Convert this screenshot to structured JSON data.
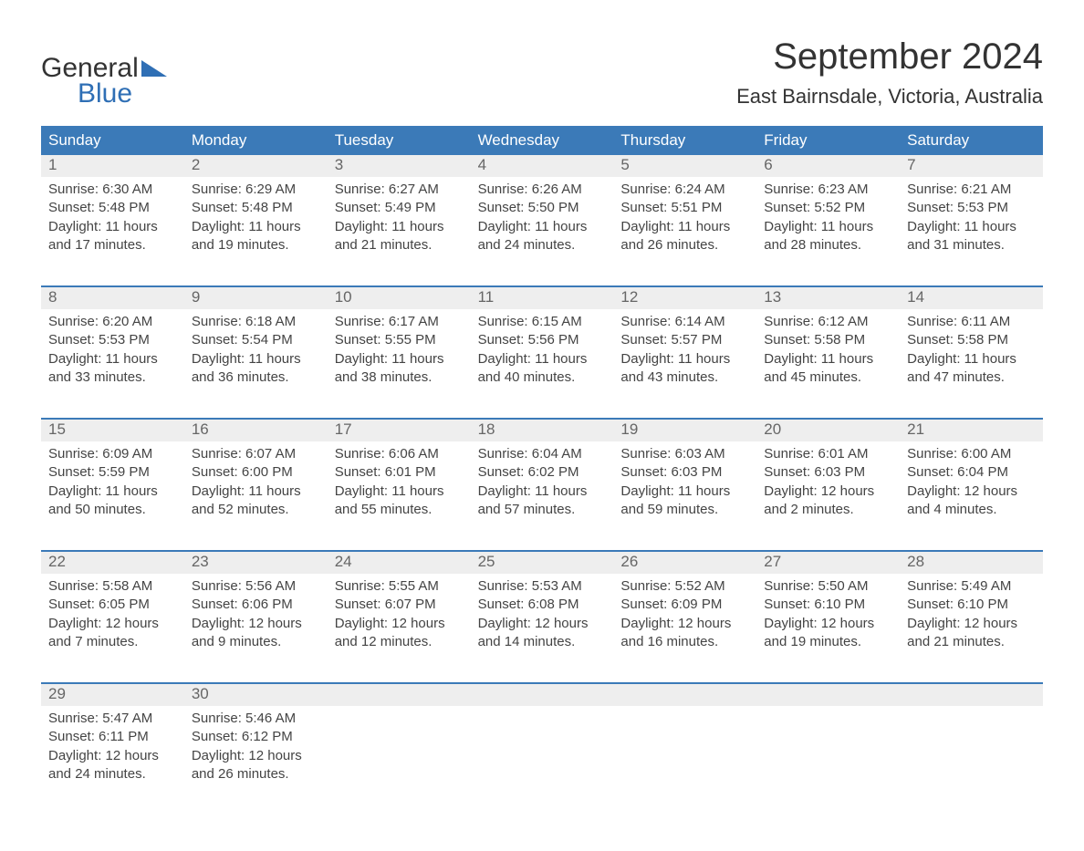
{
  "brand": {
    "text_general": "General",
    "text_blue": "Blue",
    "triangle_color": "#2f6fb5"
  },
  "title": "September 2024",
  "location": "East Bairnsdale, Victoria, Australia",
  "colors": {
    "header_bg": "#3b7ab8",
    "header_text": "#ffffff",
    "date_row_bg": "#eeeeee",
    "date_text": "#666666",
    "body_text": "#444444",
    "rule": "#3b7ab8"
  },
  "fonts": {
    "month_title_size": 40,
    "location_size": 22,
    "header_size": 17,
    "date_size": 17,
    "body_size": 15
  },
  "day_names": [
    "Sunday",
    "Monday",
    "Tuesday",
    "Wednesday",
    "Thursday",
    "Friday",
    "Saturday"
  ],
  "weeks": [
    {
      "dates": [
        "1",
        "2",
        "3",
        "4",
        "5",
        "6",
        "7"
      ],
      "cells": [
        {
          "sunrise": "Sunrise: 6:30 AM",
          "sunset": "Sunset: 5:48 PM",
          "daylight": "Daylight: 11 hours and 17 minutes."
        },
        {
          "sunrise": "Sunrise: 6:29 AM",
          "sunset": "Sunset: 5:48 PM",
          "daylight": "Daylight: 11 hours and 19 minutes."
        },
        {
          "sunrise": "Sunrise: 6:27 AM",
          "sunset": "Sunset: 5:49 PM",
          "daylight": "Daylight: 11 hours and 21 minutes."
        },
        {
          "sunrise": "Sunrise: 6:26 AM",
          "sunset": "Sunset: 5:50 PM",
          "daylight": "Daylight: 11 hours and 24 minutes."
        },
        {
          "sunrise": "Sunrise: 6:24 AM",
          "sunset": "Sunset: 5:51 PM",
          "daylight": "Daylight: 11 hours and 26 minutes."
        },
        {
          "sunrise": "Sunrise: 6:23 AM",
          "sunset": "Sunset: 5:52 PM",
          "daylight": "Daylight: 11 hours and 28 minutes."
        },
        {
          "sunrise": "Sunrise: 6:21 AM",
          "sunset": "Sunset: 5:53 PM",
          "daylight": "Daylight: 11 hours and 31 minutes."
        }
      ]
    },
    {
      "dates": [
        "8",
        "9",
        "10",
        "11",
        "12",
        "13",
        "14"
      ],
      "cells": [
        {
          "sunrise": "Sunrise: 6:20 AM",
          "sunset": "Sunset: 5:53 PM",
          "daylight": "Daylight: 11 hours and 33 minutes."
        },
        {
          "sunrise": "Sunrise: 6:18 AM",
          "sunset": "Sunset: 5:54 PM",
          "daylight": "Daylight: 11 hours and 36 minutes."
        },
        {
          "sunrise": "Sunrise: 6:17 AM",
          "sunset": "Sunset: 5:55 PM",
          "daylight": "Daylight: 11 hours and 38 minutes."
        },
        {
          "sunrise": "Sunrise: 6:15 AM",
          "sunset": "Sunset: 5:56 PM",
          "daylight": "Daylight: 11 hours and 40 minutes."
        },
        {
          "sunrise": "Sunrise: 6:14 AM",
          "sunset": "Sunset: 5:57 PM",
          "daylight": "Daylight: 11 hours and 43 minutes."
        },
        {
          "sunrise": "Sunrise: 6:12 AM",
          "sunset": "Sunset: 5:58 PM",
          "daylight": "Daylight: 11 hours and 45 minutes."
        },
        {
          "sunrise": "Sunrise: 6:11 AM",
          "sunset": "Sunset: 5:58 PM",
          "daylight": "Daylight: 11 hours and 47 minutes."
        }
      ]
    },
    {
      "dates": [
        "15",
        "16",
        "17",
        "18",
        "19",
        "20",
        "21"
      ],
      "cells": [
        {
          "sunrise": "Sunrise: 6:09 AM",
          "sunset": "Sunset: 5:59 PM",
          "daylight": "Daylight: 11 hours and 50 minutes."
        },
        {
          "sunrise": "Sunrise: 6:07 AM",
          "sunset": "Sunset: 6:00 PM",
          "daylight": "Daylight: 11 hours and 52 minutes."
        },
        {
          "sunrise": "Sunrise: 6:06 AM",
          "sunset": "Sunset: 6:01 PM",
          "daylight": "Daylight: 11 hours and 55 minutes."
        },
        {
          "sunrise": "Sunrise: 6:04 AM",
          "sunset": "Sunset: 6:02 PM",
          "daylight": "Daylight: 11 hours and 57 minutes."
        },
        {
          "sunrise": "Sunrise: 6:03 AM",
          "sunset": "Sunset: 6:03 PM",
          "daylight": "Daylight: 11 hours and 59 minutes."
        },
        {
          "sunrise": "Sunrise: 6:01 AM",
          "sunset": "Sunset: 6:03 PM",
          "daylight": "Daylight: 12 hours and 2 minutes."
        },
        {
          "sunrise": "Sunrise: 6:00 AM",
          "sunset": "Sunset: 6:04 PM",
          "daylight": "Daylight: 12 hours and 4 minutes."
        }
      ]
    },
    {
      "dates": [
        "22",
        "23",
        "24",
        "25",
        "26",
        "27",
        "28"
      ],
      "cells": [
        {
          "sunrise": "Sunrise: 5:58 AM",
          "sunset": "Sunset: 6:05 PM",
          "daylight": "Daylight: 12 hours and 7 minutes."
        },
        {
          "sunrise": "Sunrise: 5:56 AM",
          "sunset": "Sunset: 6:06 PM",
          "daylight": "Daylight: 12 hours and 9 minutes."
        },
        {
          "sunrise": "Sunrise: 5:55 AM",
          "sunset": "Sunset: 6:07 PM",
          "daylight": "Daylight: 12 hours and 12 minutes."
        },
        {
          "sunrise": "Sunrise: 5:53 AM",
          "sunset": "Sunset: 6:08 PM",
          "daylight": "Daylight: 12 hours and 14 minutes."
        },
        {
          "sunrise": "Sunrise: 5:52 AM",
          "sunset": "Sunset: 6:09 PM",
          "daylight": "Daylight: 12 hours and 16 minutes."
        },
        {
          "sunrise": "Sunrise: 5:50 AM",
          "sunset": "Sunset: 6:10 PM",
          "daylight": "Daylight: 12 hours and 19 minutes."
        },
        {
          "sunrise": "Sunrise: 5:49 AM",
          "sunset": "Sunset: 6:10 PM",
          "daylight": "Daylight: 12 hours and 21 minutes."
        }
      ]
    },
    {
      "dates": [
        "29",
        "30",
        "",
        "",
        "",
        "",
        ""
      ],
      "cells": [
        {
          "sunrise": "Sunrise: 5:47 AM",
          "sunset": "Sunset: 6:11 PM",
          "daylight": "Daylight: 12 hours and 24 minutes."
        },
        {
          "sunrise": "Sunrise: 5:46 AM",
          "sunset": "Sunset: 6:12 PM",
          "daylight": "Daylight: 12 hours and 26 minutes."
        },
        {
          "sunrise": "",
          "sunset": "",
          "daylight": ""
        },
        {
          "sunrise": "",
          "sunset": "",
          "daylight": ""
        },
        {
          "sunrise": "",
          "sunset": "",
          "daylight": ""
        },
        {
          "sunrise": "",
          "sunset": "",
          "daylight": ""
        },
        {
          "sunrise": "",
          "sunset": "",
          "daylight": ""
        }
      ]
    }
  ]
}
